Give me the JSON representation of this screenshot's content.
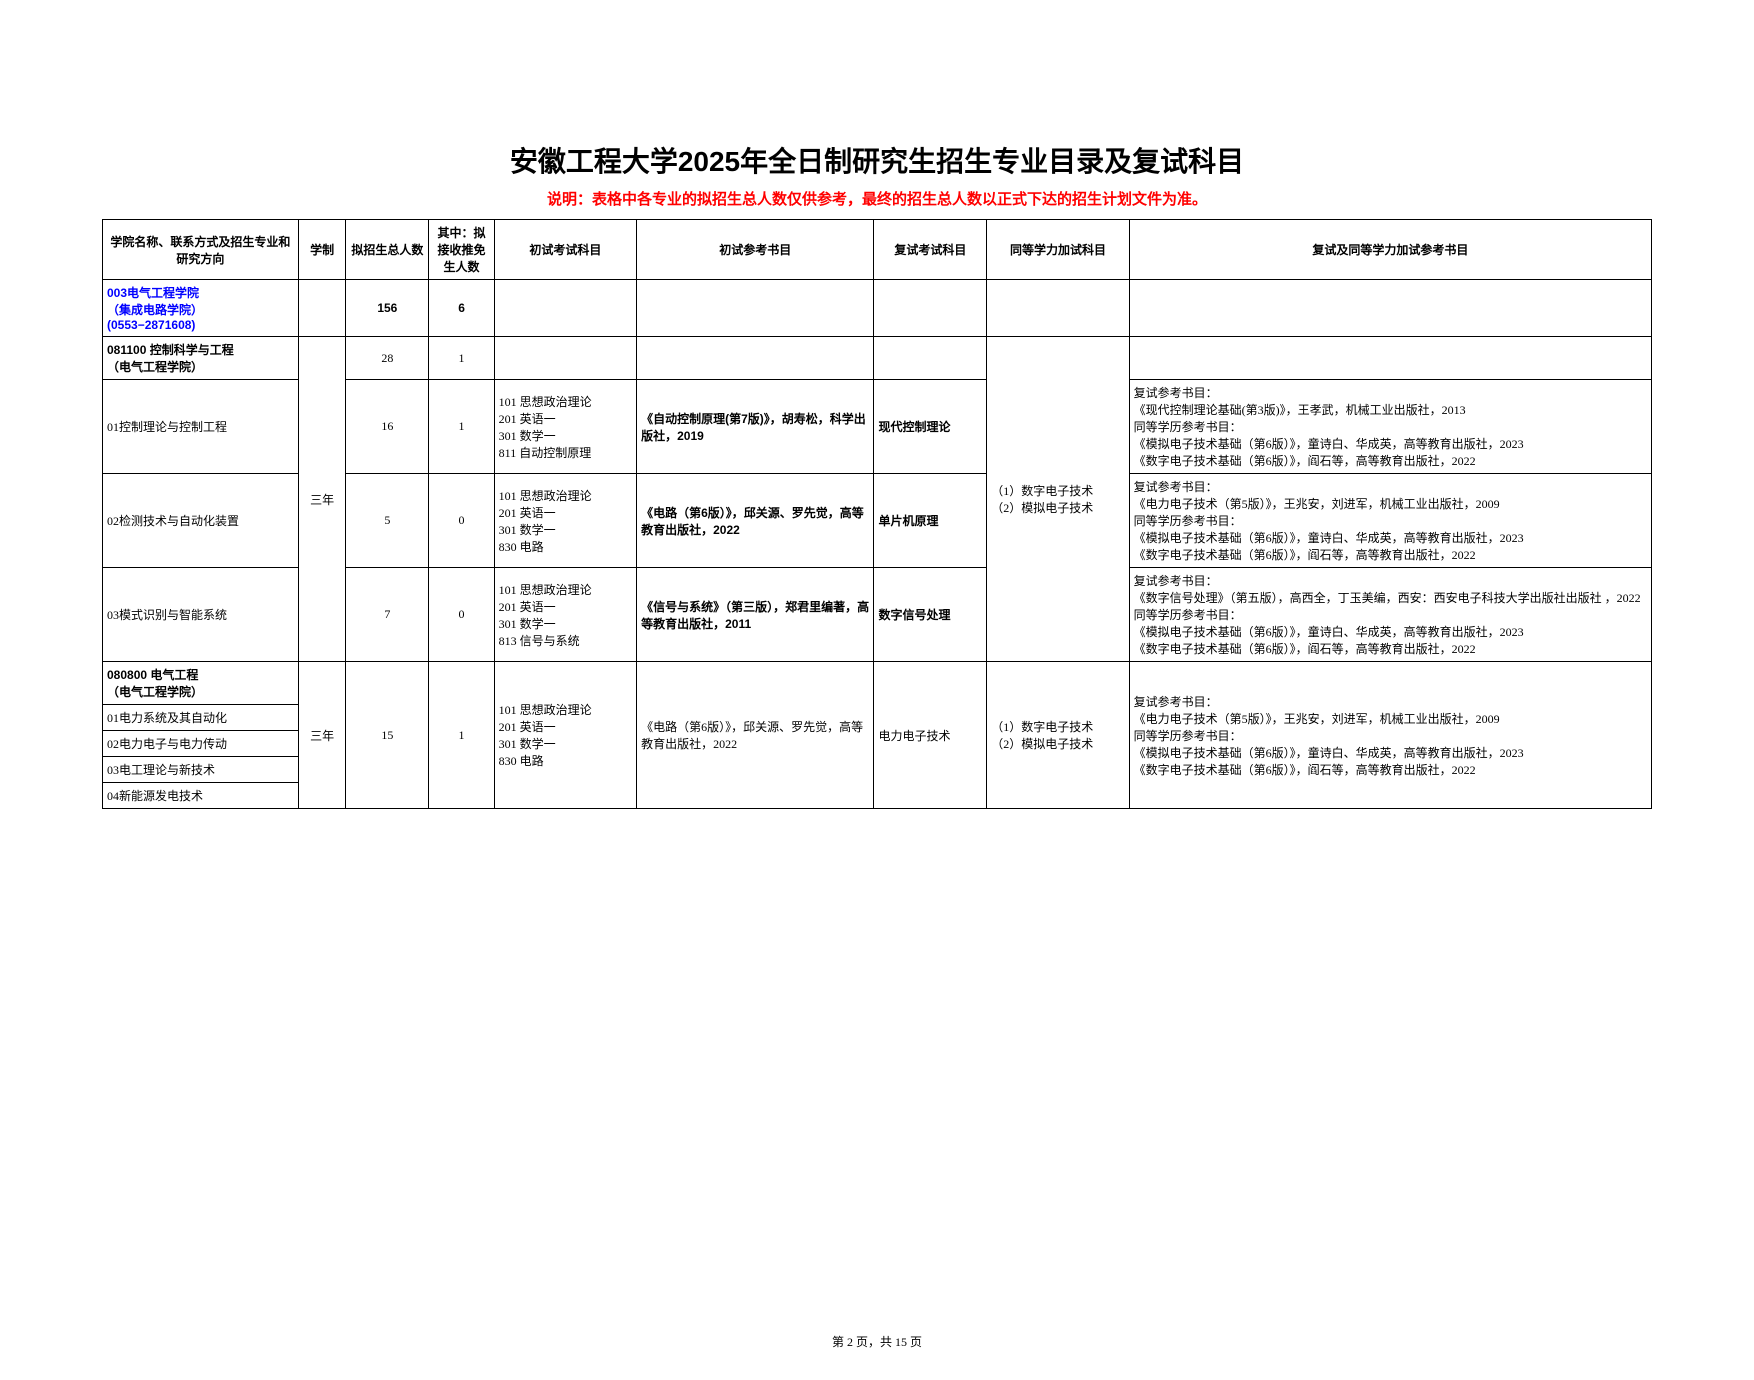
{
  "title": "安徽工程大学2025年全日制研究生招生专业目录及复试科目",
  "note": "说明：表格中各专业的拟招生总人数仅供参考，最终的招生总人数以正式下达的招生计划文件为准。",
  "footer": "第 2 页，共 15 页",
  "headers": {
    "dept": "学院名称、联系方式及招生专业和研究方向",
    "duration": "学制",
    "total": "拟招生总人数",
    "exempt": "其中：拟接收推免生人数",
    "prelim": "初试考试科目",
    "prelim_book": "初试参考书目",
    "retest": "复试考试科目",
    "equiv": "同等学力加试科目",
    "refs": "复试及同等学力加试参考书目"
  },
  "dept": {
    "name": "003电气工程学院\n（集成电路学院）\n(0553−2871608)",
    "total": "156",
    "exempt": "6"
  },
  "prog1": {
    "name": "081100 控制科学与工程\n（电气工程学院）",
    "duration": "三年",
    "total": "28",
    "exempt": "1",
    "equiv": "（1）数字电子技术\n（2）模拟电子技术",
    "dir1": {
      "name": "01控制理论与控制工程",
      "total": "16",
      "exempt": "1",
      "prelim": "101 思想政治理论\n201 英语一\n301 数学一\n811 自动控制原理",
      "prebook": "《自动控制原理(第7版)》，胡寿松，科学出版社，2019",
      "retest": "现代控制理论",
      "refs": "复试参考书目：\n《现代控制理论基础(第3版)》，王孝武，机械工业出版社，2013\n同等学历参考书目：\n《模拟电子技术基础（第6版）》，童诗白、华成英，高等教育出版社，2023\n《数字电子技术基础（第6版）》，阎石等，高等教育出版社，2022"
    },
    "dir2": {
      "name": "02检测技术与自动化装置",
      "total": "5",
      "exempt": "0",
      "prelim": "101 思想政治理论\n201 英语一\n301 数学一\n830 电路",
      "prebook": "《电路（第6版）》，邱关源、罗先觉，高等教育出版社，2022",
      "retest": "单片机原理",
      "refs": "复试参考书目：\n《电力电子技术（第5版）》，王兆安，刘进军，机械工业出版社，2009\n同等学历参考书目：\n《模拟电子技术基础（第6版）》，童诗白、华成英，高等教育出版社，2023\n《数字电子技术基础（第6版）》，阎石等，高等教育出版社，2022"
    },
    "dir3": {
      "name": "03模式识别与智能系统",
      "total": "7",
      "exempt": "0",
      "prelim": "101 思想政治理论\n201 英语一\n301 数学一\n813 信号与系统",
      "prebook": "《信号与系统》（第三版），郑君里编著，高等教育出版社，2011",
      "retest": "数字信号处理",
      "refs": "复试参考书目：\n《数字信号处理》（第五版），高西全，丁玉美编，西安：西安电子科技大学出版社出版社 ，2022\n同等学历参考书目：\n《模拟电子技术基础（第6版）》，童诗白、华成英，高等教育出版社，2023\n《数字电子技术基础（第6版）》，阎石等，高等教育出版社，2022"
    }
  },
  "prog2": {
    "name": "080800 电气工程\n（电气工程学院）",
    "duration": "三年",
    "total": "15",
    "exempt": "1",
    "prelim": "101 思想政治理论\n201 英语一\n301 数学一\n830 电路",
    "prebook": "《电路（第6版）》，邱关源、罗先觉，高等教育出版社，2022",
    "retest": "电力电子技术",
    "equiv": "（1）数字电子技术\n（2）模拟电子技术",
    "refs": "复试参考书目：\n《电力电子技术（第5版）》，王兆安，刘进军，机械工业出版社，2009\n同等学历参考书目：\n《模拟电子技术基础（第6版）》，童诗白、华成英，高等教育出版社，2023\n《数字电子技术基础（第6版）》，阎石等，高等教育出版社，2022",
    "dir1": "01电力系统及其自动化",
    "dir2": "02电力电子与电力传动",
    "dir3": "03电工理论与新技术",
    "dir4": "04新能源发电技术"
  }
}
